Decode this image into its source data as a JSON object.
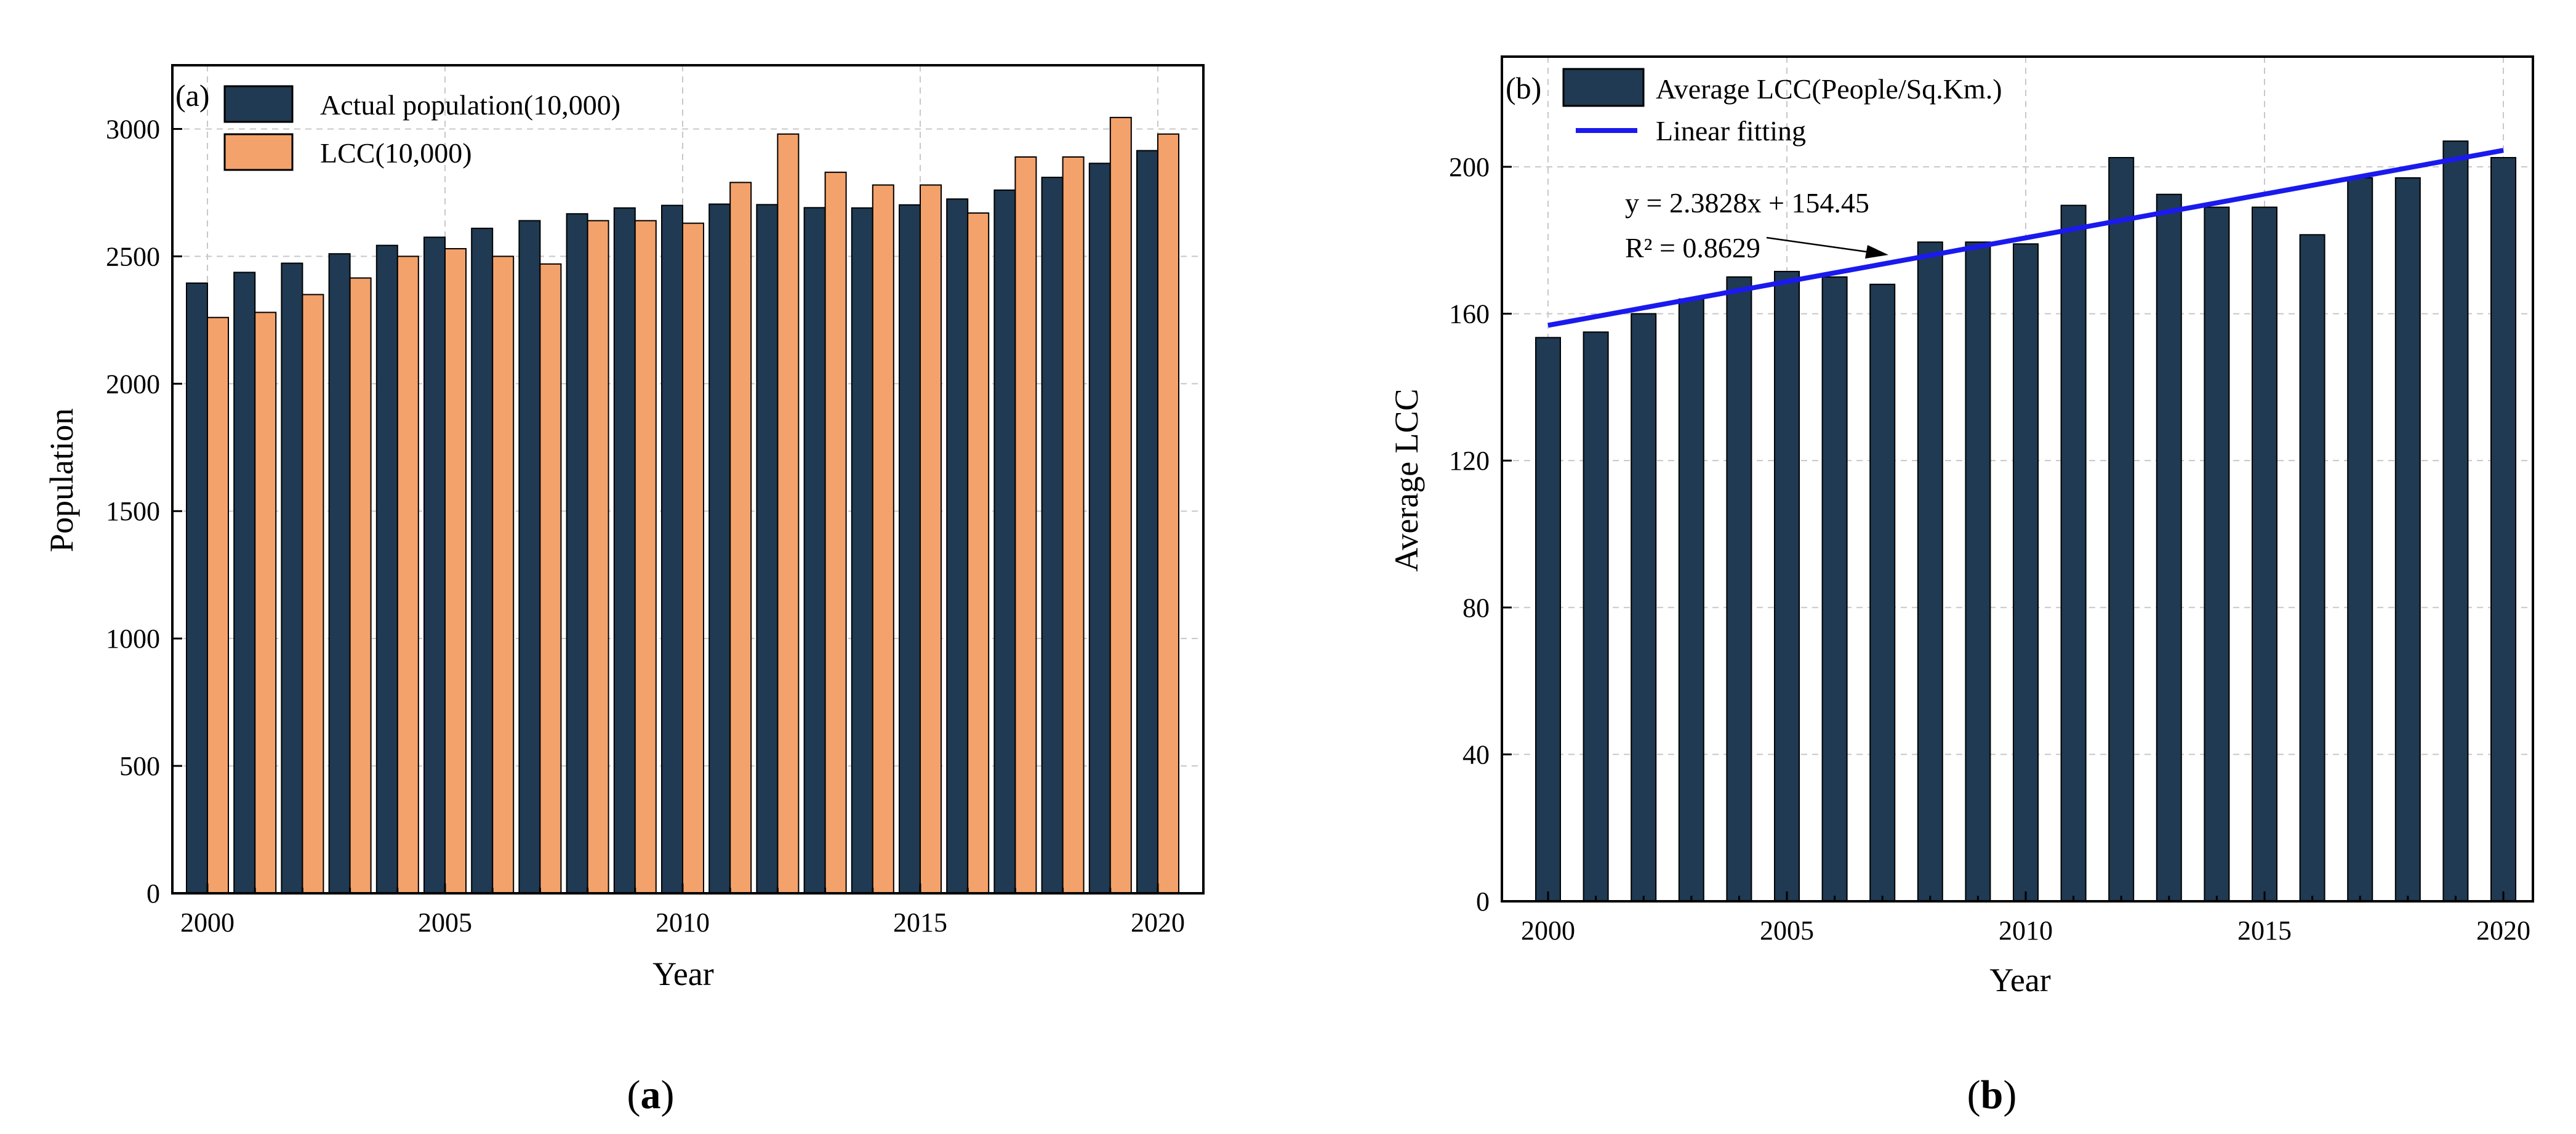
{
  "chart_data": [
    {
      "type": "bar",
      "panel_tag": "(a)",
      "caption_letter": "a",
      "xlabel": "Year",
      "ylabel": "Population",
      "categories": [
        2000,
        2001,
        2002,
        2003,
        2004,
        2005,
        2006,
        2007,
        2008,
        2009,
        2010,
        2011,
        2012,
        2013,
        2014,
        2015,
        2016,
        2017,
        2018,
        2019,
        2020
      ],
      "xticks": [
        2000,
        2005,
        2010,
        2015,
        2020
      ],
      "yticks": [
        0,
        500,
        1000,
        1500,
        2000,
        2500,
        3000
      ],
      "ylim": [
        0,
        3250
      ],
      "grid": true,
      "legend_position": "top-left",
      "series": [
        {
          "name": "Actual population(10,000)",
          "color": "#1f3a52",
          "values": [
            2395,
            2437,
            2473,
            2510,
            2543,
            2575,
            2610,
            2640,
            2667,
            2690,
            2700,
            2705,
            2703,
            2691,
            2690,
            2702,
            2725,
            2760,
            2810,
            2865,
            2915
          ]
        },
        {
          "name": "LCC(10,000)",
          "color": "#f4a26b",
          "values": [
            2260,
            2280,
            2350,
            2415,
            2500,
            2530,
            2500,
            2470,
            2640,
            2640,
            2630,
            2790,
            2980,
            2830,
            2780,
            2780,
            2670,
            2890,
            2890,
            3045,
            2980
          ]
        }
      ]
    },
    {
      "type": "bar",
      "panel_tag": "(b)",
      "caption_letter": "b",
      "xlabel": "Year",
      "ylabel": "Average  LCC",
      "categories": [
        2000,
        2001,
        2002,
        2003,
        2004,
        2005,
        2006,
        2007,
        2008,
        2009,
        2010,
        2011,
        2012,
        2013,
        2014,
        2015,
        2016,
        2017,
        2018,
        2019,
        2020
      ],
      "xticks": [
        2000,
        2005,
        2010,
        2015,
        2020
      ],
      "yticks": [
        0,
        40,
        80,
        120,
        160,
        200
      ],
      "ylim": [
        0,
        230
      ],
      "grid": true,
      "legend_position": "top-left",
      "series": [
        {
          "name": "Average LCC(People/Sq.Km.)",
          "color": "#1f3a52",
          "values": [
            153.5,
            155,
            160,
            164,
            170,
            171.5,
            170,
            168,
            179.5,
            179.5,
            179,
            189.5,
            202.5,
            192.5,
            189,
            189,
            181.5,
            197,
            197,
            207,
            202.5
          ]
        }
      ],
      "trendline": {
        "name": "Linear fitting",
        "color": "#1a1aee",
        "equation": "y = 2.3828x + 154.45",
        "r2_label": "R² = 0.8629",
        "slope": 2.3828,
        "intercept": 154.45
      }
    }
  ]
}
